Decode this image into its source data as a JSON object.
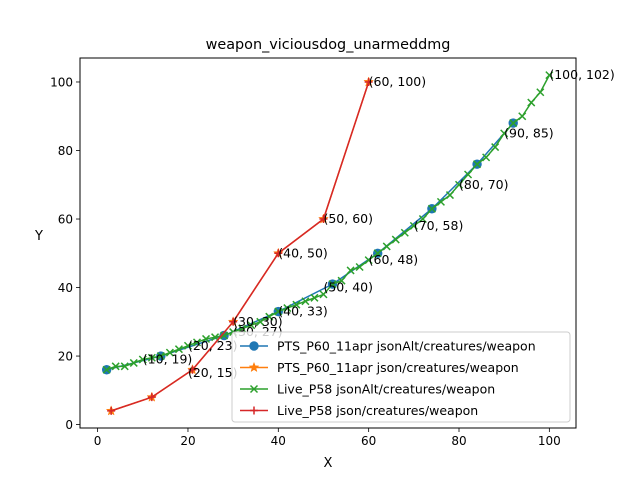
{
  "chart_data": {
    "type": "line",
    "title": "weapon_viciousdog_unarmeddmg",
    "xlabel": "X",
    "ylabel": "Y",
    "xlim": [
      -3.9,
      105.9
    ],
    "ylim": [
      -1,
      107
    ],
    "xticks": [
      0,
      20,
      40,
      60,
      80,
      100
    ],
    "yticks": [
      0,
      20,
      40,
      60,
      80,
      100
    ],
    "legend_position": "lower-right",
    "series": [
      {
        "name": "PTS_P60_11apr jsonAlt/creatures/weapon",
        "color": "#1f77b4",
        "marker": "circle",
        "points": [
          [
            2,
            16
          ],
          [
            14,
            20
          ],
          [
            28,
            26
          ],
          [
            40,
            33
          ],
          [
            52,
            41
          ],
          [
            62,
            50
          ],
          [
            74,
            63
          ],
          [
            84,
            76
          ],
          [
            92,
            88
          ]
        ]
      },
      {
        "name": "PTS_P60_11apr json/creatures/weapon",
        "color": "#ff7f0e",
        "marker": "star",
        "points": [
          [
            3,
            4
          ],
          [
            12,
            8
          ],
          [
            21,
            16
          ],
          [
            30,
            30
          ],
          [
            40,
            50
          ],
          [
            50,
            60
          ],
          [
            60,
            100
          ]
        ]
      },
      {
        "name": "Live_P58 jsonAlt/creatures/weapon",
        "color": "#2ca02c",
        "marker": "x",
        "points": [
          [
            2,
            16
          ],
          [
            4,
            17
          ],
          [
            6,
            17
          ],
          [
            8,
            18
          ],
          [
            10,
            19
          ],
          [
            12,
            19.5
          ],
          [
            14,
            20
          ],
          [
            16,
            21
          ],
          [
            18,
            22
          ],
          [
            20,
            23
          ],
          [
            22,
            24
          ],
          [
            24,
            25
          ],
          [
            26,
            25.5
          ],
          [
            28,
            26
          ],
          [
            30,
            27
          ],
          [
            32,
            28
          ],
          [
            34,
            29
          ],
          [
            36,
            30
          ],
          [
            38,
            31.5
          ],
          [
            40,
            33
          ],
          [
            42,
            34
          ],
          [
            44,
            35
          ],
          [
            46,
            36
          ],
          [
            48,
            37
          ],
          [
            50,
            38
          ],
          [
            52,
            41
          ],
          [
            54,
            42
          ],
          [
            56,
            45
          ],
          [
            58,
            46
          ],
          [
            60,
            48
          ],
          [
            62,
            50
          ],
          [
            64,
            52
          ],
          [
            66,
            54
          ],
          [
            68,
            56
          ],
          [
            70,
            58
          ],
          [
            72,
            60
          ],
          [
            74,
            63
          ],
          [
            76,
            65
          ],
          [
            78,
            67
          ],
          [
            80,
            70
          ],
          [
            82,
            73
          ],
          [
            84,
            76
          ],
          [
            86,
            78
          ],
          [
            88,
            81
          ],
          [
            90,
            85
          ],
          [
            92,
            88
          ],
          [
            94,
            90
          ],
          [
            96,
            94
          ],
          [
            98,
            97
          ],
          [
            100,
            102
          ]
        ]
      },
      {
        "name": "Live_P58 json/creatures/weapon",
        "color": "#d62728",
        "marker": "plus",
        "points": [
          [
            3,
            4
          ],
          [
            12,
            8
          ],
          [
            21,
            16
          ],
          [
            30,
            30
          ],
          [
            40,
            50
          ],
          [
            50,
            60
          ],
          [
            60,
            100
          ]
        ]
      }
    ],
    "annotations": [
      {
        "text": "(10, 19)",
        "x": 10,
        "y": 19
      },
      {
        "text": "(20, 23)",
        "x": 20,
        "y": 23
      },
      {
        "text": "(20, 15)",
        "x": 20,
        "y": 15
      },
      {
        "text": "(30, 30)",
        "x": 30,
        "y": 30
      },
      {
        "text": "(30, 27)",
        "x": 30,
        "y": 27
      },
      {
        "text": "(40, 50)",
        "x": 40,
        "y": 50
      },
      {
        "text": "(40, 33)",
        "x": 40,
        "y": 33
      },
      {
        "text": "(50, 60)",
        "x": 50,
        "y": 60
      },
      {
        "text": "(50, 40)",
        "x": 50,
        "y": 40
      },
      {
        "text": "(60, 100)",
        "x": 60,
        "y": 100
      },
      {
        "text": "(60, 48)",
        "x": 60,
        "y": 48
      },
      {
        "text": "(70, 58)",
        "x": 70,
        "y": 58
      },
      {
        "text": "(80, 70)",
        "x": 80,
        "y": 70
      },
      {
        "text": "(90, 85)",
        "x": 90,
        "y": 85
      },
      {
        "text": "(100, 102)",
        "x": 100,
        "y": 102
      }
    ]
  }
}
